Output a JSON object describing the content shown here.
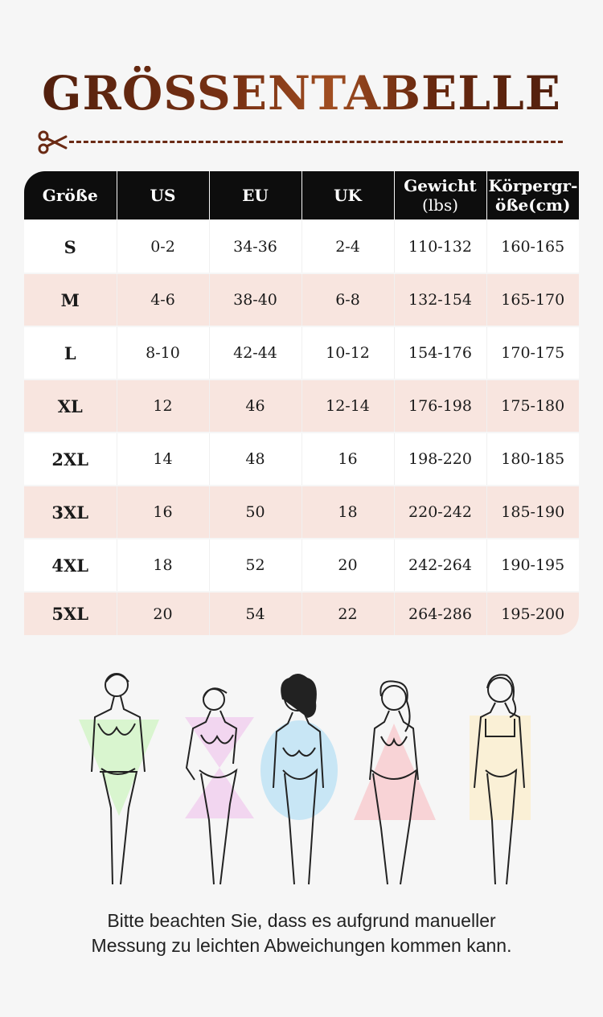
{
  "title": "GRÖSSENTABELLE",
  "table": {
    "headers": [
      {
        "main": "Größe",
        "sub": ""
      },
      {
        "main": "US",
        "sub": ""
      },
      {
        "main": "EU",
        "sub": ""
      },
      {
        "main": "UK",
        "sub": ""
      },
      {
        "main": "Gewicht",
        "sub": "(lbs)"
      },
      {
        "main": "Körpergr-",
        "sub": "öße(cm)"
      }
    ],
    "rows": [
      [
        "S",
        "0-2",
        "34-36",
        "2-4",
        "110-132",
        "160-165"
      ],
      [
        "M",
        "4-6",
        "38-40",
        "6-8",
        "132-154",
        "165-170"
      ],
      [
        "L",
        "8-10",
        "42-44",
        "10-12",
        "154-176",
        "170-175"
      ],
      [
        "XL",
        "12",
        "46",
        "12-14",
        "176-198",
        "175-180"
      ],
      [
        "2XL",
        "14",
        "48",
        "16",
        "198-220",
        "180-185"
      ],
      [
        "3XL",
        "16",
        "50",
        "18",
        "220-242",
        "185-190"
      ],
      [
        "4XL",
        "18",
        "52",
        "20",
        "242-264",
        "190-195"
      ],
      [
        "5XL",
        "20",
        "54",
        "22",
        "264-286",
        "195-200"
      ]
    ]
  },
  "note": {
    "line1": "Bitte beachten Sie, dass es aufgrund manueller",
    "line2": "Messung zu leichten Abweichungen kommen kann."
  },
  "colors": {
    "title": "#5a2410",
    "header_bg": "#0d0d0d",
    "row_alt": "#f8e5df",
    "shape_green": "#d9f5cf",
    "shape_pink": "#f2d6f0",
    "shape_blue": "#c8e6f5",
    "shape_salmon": "#f8d3d6",
    "shape_yellow": "#faf0d6"
  },
  "icons": [
    "scissors-icon"
  ]
}
